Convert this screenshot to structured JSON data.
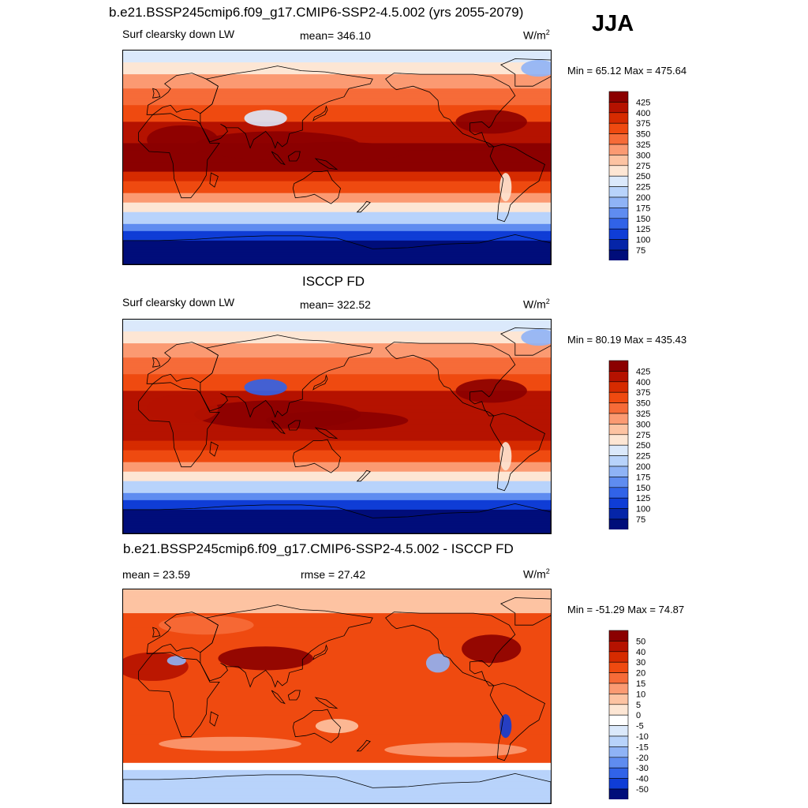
{
  "figure": {
    "title": "b.e21.BSSP245cmip6.f09_g17.CMIP6-SSP2-4.5.002 (yrs 2055-2079)",
    "season": "JJA"
  },
  "chart_data": [
    {
      "type": "heatmap",
      "variable_label": "Surf clearsky down LW",
      "mean_label": "mean= 346.10",
      "units_base": "W/m",
      "units_exp": "2",
      "minmax_label": "Min =  65.12 Max = 475.64",
      "colorbar": {
        "levels": [
          "425",
          "400",
          "375",
          "350",
          "325",
          "300",
          "275",
          "250",
          "225",
          "200",
          "175",
          "150",
          "125",
          "100",
          "75"
        ],
        "colors": [
          "#8b0000",
          "#b51200",
          "#d62b00",
          "#ef4a10",
          "#f66b38",
          "#fb9a72",
          "#fdc3a2",
          "#fde6d4",
          "#dbe9fb",
          "#b8d3fb",
          "#8fb3f6",
          "#5f8cf0",
          "#3163e8",
          "#0f3dd6",
          "#0525a8",
          "#000d7a"
        ]
      }
    },
    {
      "type": "heatmap",
      "panel_title": "ISCCP FD",
      "variable_label": "Surf clearsky down LW",
      "mean_label": "mean= 322.52",
      "units_base": "W/m",
      "units_exp": "2",
      "minmax_label": "Min =  80.19 Max = 435.43",
      "colorbar": {
        "levels": [
          "425",
          "400",
          "375",
          "350",
          "325",
          "300",
          "275",
          "250",
          "225",
          "200",
          "175",
          "150",
          "125",
          "100",
          "75"
        ],
        "colors": [
          "#8b0000",
          "#b51200",
          "#d62b00",
          "#ef4a10",
          "#f66b38",
          "#fb9a72",
          "#fdc3a2",
          "#fde6d4",
          "#dbe9fb",
          "#b8d3fb",
          "#8fb3f6",
          "#5f8cf0",
          "#3163e8",
          "#0f3dd6",
          "#0525a8",
          "#000d7a"
        ]
      }
    },
    {
      "type": "heatmap",
      "panel_title": "b.e21.BSSP245cmip6.f09_g17.CMIP6-SSP2-4.5.002 - ISCCP FD",
      "mean_label": "mean =  23.59",
      "rmse_label": "rmse =  27.42",
      "units_base": "W/m",
      "units_exp": "2",
      "minmax_label": "Min = -51.29 Max =  74.87",
      "colorbar": {
        "levels": [
          "50",
          "40",
          "30",
          "20",
          "15",
          "10",
          "5",
          "0",
          "-5",
          "-10",
          "-15",
          "-20",
          "-30",
          "-40",
          "-50"
        ],
        "colors": [
          "#8b0000",
          "#b51200",
          "#d62b00",
          "#ef4a10",
          "#f66b38",
          "#fb9a72",
          "#fdc3a2",
          "#fde6d4",
          "#ffffff",
          "#dbe9fb",
          "#b8d3fb",
          "#8fb3f6",
          "#5f8cf0",
          "#3163e8",
          "#0f3dd6",
          "#000d7a"
        ]
      }
    }
  ]
}
